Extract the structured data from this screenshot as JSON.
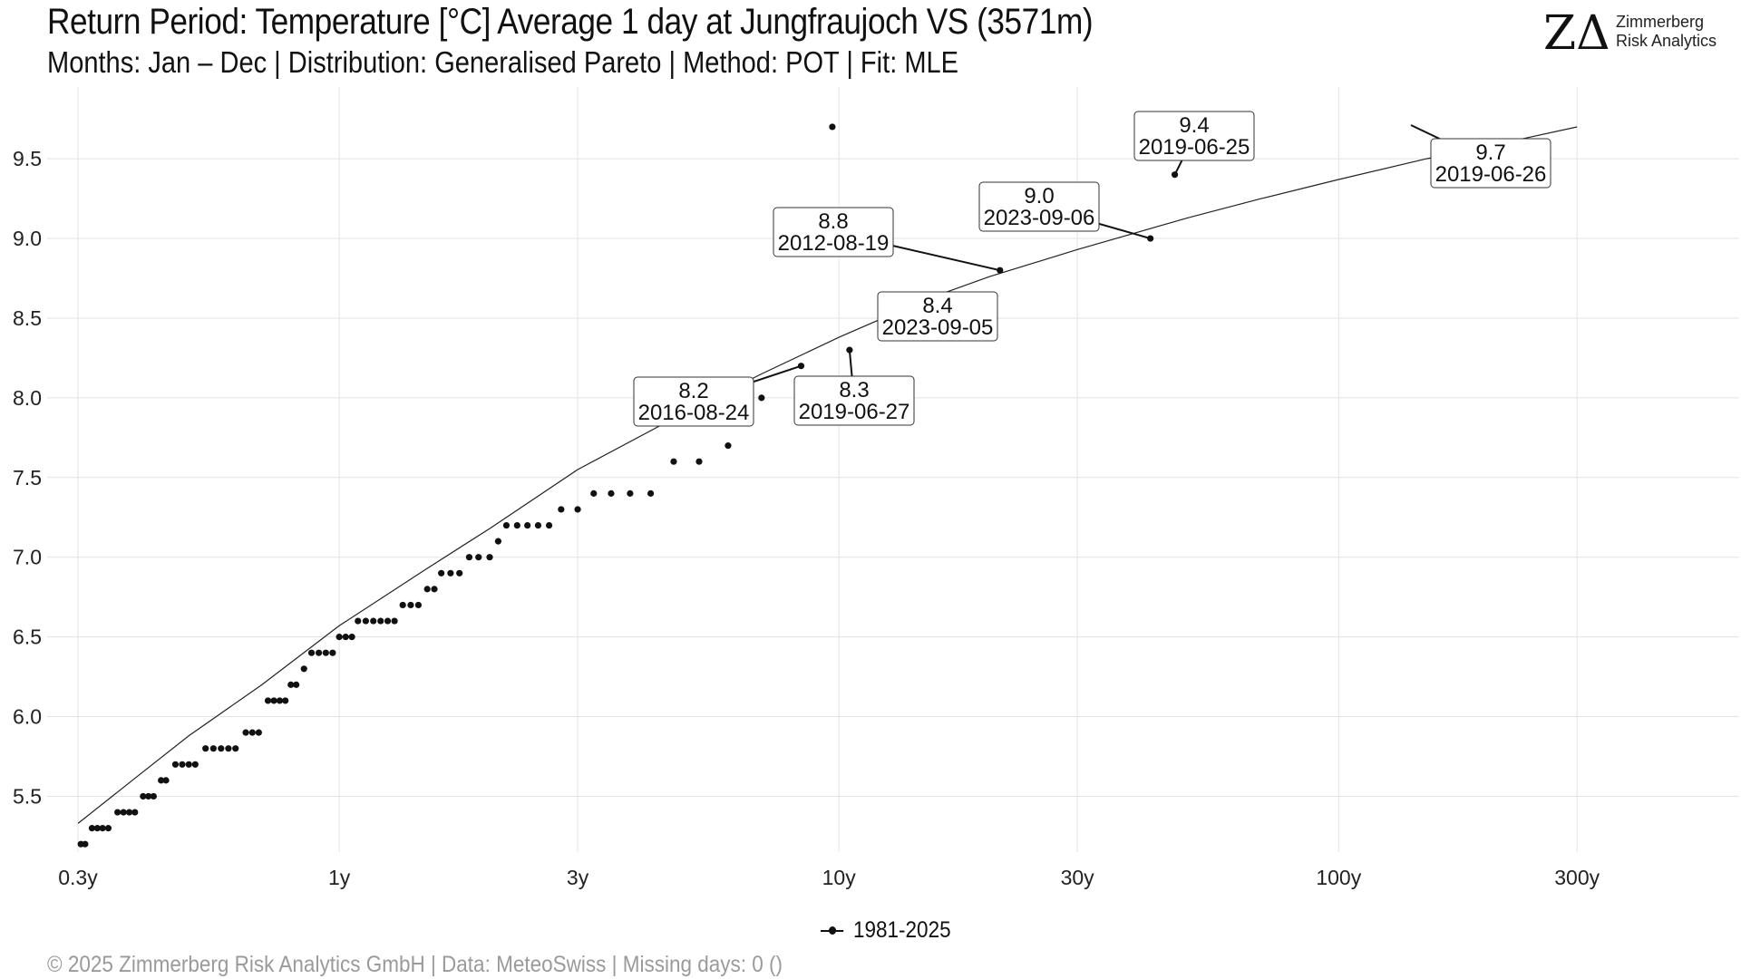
{
  "header": {
    "title": "Return Period: Temperature [°C] Average 1 day at Jungfraujoch  VS (3571m)",
    "subtitle": "Months: Jan – Dec | Distribution: Generalised Pareto | Method: POT | Fit: MLE"
  },
  "logo": {
    "mark": "ZΔ",
    "line1": "Zimmerberg",
    "line2": "Risk Analytics"
  },
  "footer": {
    "text": "©  2025 Zimmerberg Risk Analytics GmbH | Data: MeteoSwiss | Missing days: 0 ()"
  },
  "legend": {
    "label": "1981-2025"
  },
  "chart_data": {
    "type": "scatter",
    "x_scale": "log",
    "x_unit": "return period (years)",
    "xlim": [
      0.3,
      330
    ],
    "ylim": [
      5.15,
      9.95
    ],
    "x_ticks": [
      {
        "value": 0.3,
        "label": "0.3y"
      },
      {
        "value": 1,
        "label": "1y"
      },
      {
        "value": 3,
        "label": "3y"
      },
      {
        "value": 10,
        "label": "10y"
      },
      {
        "value": 30,
        "label": "30y"
      },
      {
        "value": 100,
        "label": "100y"
      },
      {
        "value": 300,
        "label": "300y"
      }
    ],
    "y_ticks": [
      {
        "value": 5.5,
        "label": "5.5"
      },
      {
        "value": 6.0,
        "label": "6.0"
      },
      {
        "value": 6.5,
        "label": "6.5"
      },
      {
        "value": 7.0,
        "label": "7.0"
      },
      {
        "value": 7.5,
        "label": "7.5"
      },
      {
        "value": 8.0,
        "label": "8.0"
      },
      {
        "value": 8.5,
        "label": "8.5"
      },
      {
        "value": 9.0,
        "label": "9.0"
      },
      {
        "value": 9.5,
        "label": "9.5"
      }
    ],
    "grid": true,
    "legend_position": "bottom",
    "fit_curve": [
      {
        "x": 0.3,
        "y": 5.33
      },
      {
        "x": 0.4,
        "y": 5.64
      },
      {
        "x": 0.5,
        "y": 5.88
      },
      {
        "x": 0.7,
        "y": 6.2
      },
      {
        "x": 1,
        "y": 6.57
      },
      {
        "x": 1.5,
        "y": 6.93
      },
      {
        "x": 2,
        "y": 7.18
      },
      {
        "x": 3,
        "y": 7.55
      },
      {
        "x": 5,
        "y": 7.92
      },
      {
        "x": 7,
        "y": 8.15
      },
      {
        "x": 10,
        "y": 8.38
      },
      {
        "x": 15,
        "y": 8.62
      },
      {
        "x": 20,
        "y": 8.76
      },
      {
        "x": 30,
        "y": 8.93
      },
      {
        "x": 50,
        "y": 9.13
      },
      {
        "x": 70,
        "y": 9.25
      },
      {
        "x": 100,
        "y": 9.37
      },
      {
        "x": 150,
        "y": 9.5
      },
      {
        "x": 200,
        "y": 9.58
      },
      {
        "x": 300,
        "y": 9.7
      }
    ],
    "points": [
      {
        "x": 0.304,
        "y": 5.2
      },
      {
        "x": 0.31,
        "y": 5.2
      },
      {
        "x": 0.32,
        "y": 5.3
      },
      {
        "x": 0.328,
        "y": 5.3
      },
      {
        "x": 0.336,
        "y": 5.3
      },
      {
        "x": 0.345,
        "y": 5.3
      },
      {
        "x": 0.36,
        "y": 5.4
      },
      {
        "x": 0.37,
        "y": 5.4
      },
      {
        "x": 0.38,
        "y": 5.4
      },
      {
        "x": 0.39,
        "y": 5.4
      },
      {
        "x": 0.405,
        "y": 5.5
      },
      {
        "x": 0.415,
        "y": 5.5
      },
      {
        "x": 0.425,
        "y": 5.5
      },
      {
        "x": 0.44,
        "y": 5.6
      },
      {
        "x": 0.45,
        "y": 5.6
      },
      {
        "x": 0.47,
        "y": 5.7
      },
      {
        "x": 0.485,
        "y": 5.7
      },
      {
        "x": 0.5,
        "y": 5.7
      },
      {
        "x": 0.515,
        "y": 5.7
      },
      {
        "x": 0.54,
        "y": 5.8
      },
      {
        "x": 0.56,
        "y": 5.8
      },
      {
        "x": 0.58,
        "y": 5.8
      },
      {
        "x": 0.6,
        "y": 5.8
      },
      {
        "x": 0.62,
        "y": 5.8
      },
      {
        "x": 0.65,
        "y": 5.9
      },
      {
        "x": 0.67,
        "y": 5.9
      },
      {
        "x": 0.69,
        "y": 5.9
      },
      {
        "x": 0.72,
        "y": 6.1
      },
      {
        "x": 0.74,
        "y": 6.1
      },
      {
        "x": 0.76,
        "y": 6.1
      },
      {
        "x": 0.78,
        "y": 6.1
      },
      {
        "x": 0.8,
        "y": 6.2
      },
      {
        "x": 0.82,
        "y": 6.2
      },
      {
        "x": 0.85,
        "y": 6.3
      },
      {
        "x": 0.88,
        "y": 6.4
      },
      {
        "x": 0.91,
        "y": 6.4
      },
      {
        "x": 0.94,
        "y": 6.4
      },
      {
        "x": 0.97,
        "y": 6.4
      },
      {
        "x": 1.0,
        "y": 6.5
      },
      {
        "x": 1.03,
        "y": 6.5
      },
      {
        "x": 1.06,
        "y": 6.5
      },
      {
        "x": 1.09,
        "y": 6.6
      },
      {
        "x": 1.13,
        "y": 6.6
      },
      {
        "x": 1.17,
        "y": 6.6
      },
      {
        "x": 1.21,
        "y": 6.6
      },
      {
        "x": 1.25,
        "y": 6.6
      },
      {
        "x": 1.29,
        "y": 6.6
      },
      {
        "x": 1.34,
        "y": 6.7
      },
      {
        "x": 1.39,
        "y": 6.7
      },
      {
        "x": 1.44,
        "y": 6.7
      },
      {
        "x": 1.5,
        "y": 6.8
      },
      {
        "x": 1.55,
        "y": 6.8
      },
      {
        "x": 1.6,
        "y": 6.9
      },
      {
        "x": 1.67,
        "y": 6.9
      },
      {
        "x": 1.74,
        "y": 6.9
      },
      {
        "x": 1.82,
        "y": 7.0
      },
      {
        "x": 1.9,
        "y": 7.0
      },
      {
        "x": 2.0,
        "y": 7.0
      },
      {
        "x": 2.08,
        "y": 7.1
      },
      {
        "x": 2.16,
        "y": 7.2
      },
      {
        "x": 2.27,
        "y": 7.2
      },
      {
        "x": 2.38,
        "y": 7.2
      },
      {
        "x": 2.5,
        "y": 7.2
      },
      {
        "x": 2.63,
        "y": 7.2
      },
      {
        "x": 2.78,
        "y": 7.3
      },
      {
        "x": 3.0,
        "y": 7.3
      },
      {
        "x": 3.23,
        "y": 7.4
      },
      {
        "x": 3.5,
        "y": 7.4
      },
      {
        "x": 3.82,
        "y": 7.4
      },
      {
        "x": 4.2,
        "y": 7.4
      },
      {
        "x": 4.67,
        "y": 7.6
      },
      {
        "x": 5.25,
        "y": 7.6
      },
      {
        "x": 6.0,
        "y": 7.7
      },
      {
        "x": 7.0,
        "y": 8.0
      },
      {
        "x": 8.4,
        "y": 8.2
      },
      {
        "x": 10.5,
        "y": 8.3
      },
      {
        "x": 14.0,
        "y": 8.4
      },
      {
        "x": 21.0,
        "y": 8.8
      },
      {
        "x": 42.0,
        "y": 9.0
      },
      {
        "x": 47.0,
        "y": 9.4
      },
      {
        "x": 9.7,
        "y": 9.7
      }
    ],
    "labels": [
      {
        "value": "8.2",
        "date": "2016-08-24"
      },
      {
        "value": "8.3",
        "date": "2019-06-27"
      },
      {
        "value": "8.4",
        "date": "2023-09-05"
      },
      {
        "value": "8.8",
        "date": "2012-08-19"
      },
      {
        "value": "9.0",
        "date": "2023-09-06"
      },
      {
        "value": "9.4",
        "date": "2019-06-25"
      },
      {
        "value": "9.7",
        "date": "2019-06-26"
      }
    ]
  }
}
